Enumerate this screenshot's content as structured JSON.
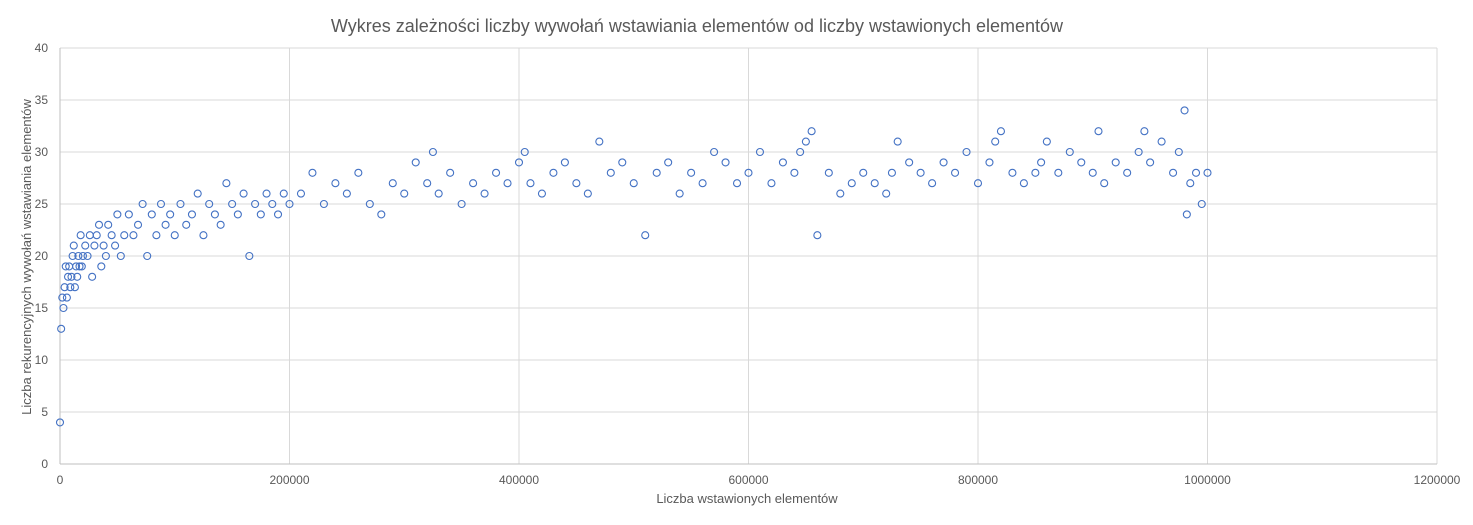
{
  "chart_data": {
    "type": "scatter",
    "title": "Wykres zależności liczby wywołań wstawiania elementów od liczby wstawionych elementów",
    "xlabel": "Liczba wstawionych elementów",
    "ylabel": "Liczba rekurencyjnych wywołań wstawiania elementów",
    "xlim": [
      0,
      1200000
    ],
    "ylim": [
      0,
      40
    ],
    "x_ticks": [
      0,
      200000,
      400000,
      600000,
      800000,
      1000000,
      1200000
    ],
    "y_ticks": [
      0,
      5,
      10,
      15,
      20,
      25,
      30,
      35,
      40
    ],
    "grid": true,
    "legend": "none",
    "marker_color": "#4472c4",
    "series": [
      {
        "x": [
          0,
          1000,
          2000,
          3000,
          4000,
          5000,
          6000,
          7000,
          8000,
          9000,
          10000,
          11000,
          12000,
          13000,
          14000,
          15000,
          16000,
          17000,
          18000,
          19000,
          20000,
          22000,
          24000,
          26000,
          28000,
          30000,
          32000,
          34000,
          36000,
          38000,
          40000,
          42000,
          45000,
          48000,
          50000,
          53000,
          56000,
          60000,
          64000,
          68000,
          72000,
          76000,
          80000,
          84000,
          88000,
          92000,
          96000,
          100000,
          105000,
          110000,
          115000,
          120000,
          125000,
          130000,
          135000,
          140000,
          145000,
          150000,
          155000,
          160000,
          165000,
          170000,
          175000,
          180000,
          185000,
          190000,
          195000,
          200000,
          210000,
          220000,
          230000,
          240000,
          250000,
          260000,
          270000,
          280000,
          290000,
          300000,
          310000,
          320000,
          325000,
          330000,
          340000,
          350000,
          360000,
          370000,
          380000,
          390000,
          400000,
          405000,
          410000,
          420000,
          430000,
          440000,
          450000,
          460000,
          470000,
          480000,
          490000,
          500000,
          510000,
          520000,
          530000,
          540000,
          550000,
          560000,
          570000,
          580000,
          590000,
          600000,
          610000,
          620000,
          630000,
          640000,
          645000,
          650000,
          655000,
          660000,
          670000,
          680000,
          690000,
          700000,
          710000,
          720000,
          725000,
          730000,
          740000,
          750000,
          760000,
          770000,
          780000,
          790000,
          800000,
          810000,
          815000,
          820000,
          830000,
          840000,
          850000,
          855000,
          860000,
          870000,
          880000,
          890000,
          900000,
          905000,
          910000,
          920000,
          930000,
          940000,
          945000,
          950000,
          960000,
          970000,
          975000,
          980000,
          982000,
          985000,
          990000,
          995000,
          1000000
        ],
        "y": [
          4,
          13,
          16,
          15,
          17,
          19,
          16,
          18,
          19,
          17,
          18,
          20,
          21,
          17,
          19,
          18,
          20,
          19,
          22,
          19,
          20,
          21,
          20,
          22,
          18,
          21,
          22,
          23,
          19,
          21,
          20,
          23,
          22,
          21,
          24,
          20,
          22,
          24,
          22,
          23,
          25,
          20,
          24,
          22,
          25,
          23,
          24,
          22,
          25,
          23,
          24,
          26,
          22,
          25,
          24,
          23,
          27,
          25,
          24,
          26,
          20,
          25,
          24,
          26,
          25,
          24,
          26,
          25,
          26,
          28,
          25,
          27,
          26,
          28,
          25,
          24,
          27,
          26,
          29,
          27,
          30,
          26,
          28,
          25,
          27,
          26,
          28,
          27,
          29,
          30,
          27,
          26,
          28,
          29,
          27,
          26,
          31,
          28,
          29,
          27,
          22,
          28,
          29,
          26,
          28,
          27,
          30,
          29,
          27,
          28,
          30,
          27,
          29,
          28,
          30,
          31,
          32,
          22,
          28,
          26,
          27,
          28,
          27,
          26,
          28,
          31,
          29,
          28,
          27,
          29,
          28,
          30,
          27,
          29,
          31,
          32,
          28,
          27,
          28,
          29,
          31,
          28,
          30,
          29,
          28,
          32,
          27,
          29,
          28,
          30,
          32,
          29,
          31,
          28,
          30,
          34,
          24,
          27,
          28,
          25,
          28
        ]
      }
    ]
  }
}
